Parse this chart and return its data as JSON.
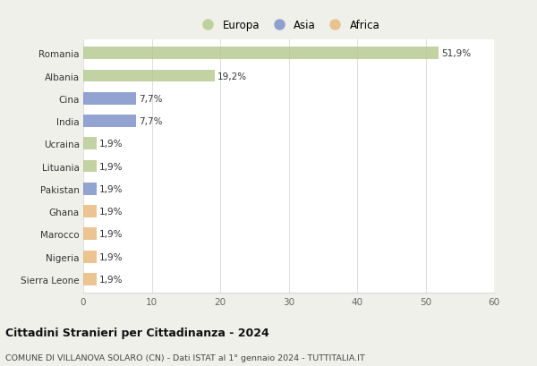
{
  "countries": [
    "Romania",
    "Albania",
    "Cina",
    "India",
    "Ucraina",
    "Lituania",
    "Pakistan",
    "Ghana",
    "Marocco",
    "Nigeria",
    "Sierra Leone"
  ],
  "values": [
    51.9,
    19.2,
    7.7,
    7.7,
    1.9,
    1.9,
    1.9,
    1.9,
    1.9,
    1.9,
    1.9
  ],
  "labels": [
    "51,9%",
    "19,2%",
    "7,7%",
    "7,7%",
    "1,9%",
    "1,9%",
    "1,9%",
    "1,9%",
    "1,9%",
    "1,9%",
    "1,9%"
  ],
  "continents": [
    "Europa",
    "Europa",
    "Asia",
    "Asia",
    "Europa",
    "Europa",
    "Asia",
    "Africa",
    "Africa",
    "Africa",
    "Africa"
  ],
  "colors": {
    "Europa": "#b5c98e",
    "Asia": "#7b8fc7",
    "Africa": "#e8b87a"
  },
  "bg_color": "#f0f0eb",
  "plot_bg_color": "#ffffff",
  "title1": "Cittadini Stranieri per Cittadinanza - 2024",
  "title2": "COMUNE DI VILLANOVA SOLARO (CN) - Dati ISTAT al 1° gennaio 2024 - TUTTITALIA.IT",
  "xlim": [
    0,
    60
  ],
  "xticks": [
    0,
    10,
    20,
    30,
    40,
    50,
    60
  ],
  "grid_color": "#d8d8d8",
  "bar_height": 0.55,
  "label_fontsize": 7.5,
  "tick_fontsize": 7.5,
  "ytick_fontsize": 7.5,
  "legend_fontsize": 8.5,
  "alpha": 0.82
}
